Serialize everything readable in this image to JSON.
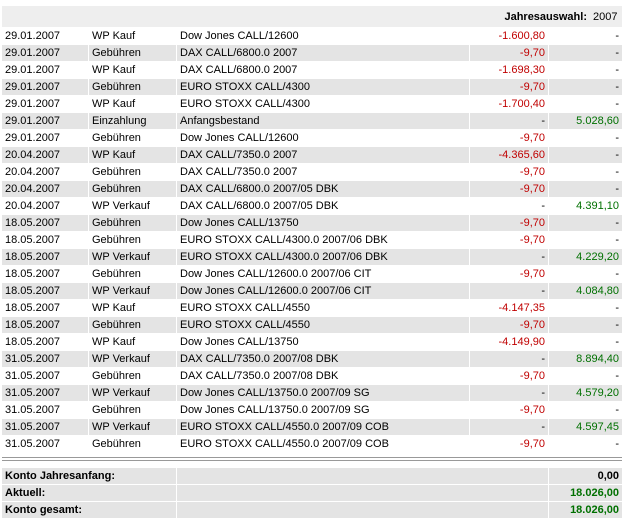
{
  "header": {
    "label": "Jahresauswahl:",
    "year": "2007"
  },
  "table": {
    "rows": [
      [
        "29.01.2007",
        "WP Kauf",
        "Dow Jones CALL/12600",
        "-1.600,80",
        "-"
      ],
      [
        "29.01.2007",
        "Gebühren",
        "DAX CALL/6800.0 2007",
        "-9,70",
        "-"
      ],
      [
        "29.01.2007",
        "WP Kauf",
        "DAX CALL/6800.0 2007",
        "-1.698,30",
        "-"
      ],
      [
        "29.01.2007",
        "Gebühren",
        "EURO STOXX CALL/4300",
        "-9,70",
        "-"
      ],
      [
        "29.01.2007",
        "WP Kauf",
        "EURO STOXX CALL/4300",
        "-1.700,40",
        "-"
      ],
      [
        "29.01.2007",
        "Einzahlung",
        "Anfangsbestand",
        "-",
        "5.028,60"
      ],
      [
        "29.01.2007",
        "Gebühren",
        "Dow Jones CALL/12600",
        "-9,70",
        "-"
      ],
      [
        "20.04.2007",
        "WP Kauf",
        "DAX CALL/7350.0 2007",
        "-4.365,60",
        "-"
      ],
      [
        "20.04.2007",
        "Gebühren",
        "DAX CALL/7350.0 2007",
        "-9,70",
        "-"
      ],
      [
        "20.04.2007",
        "Gebühren",
        "DAX CALL/6800.0 2007/05 DBK",
        "-9,70",
        "-"
      ],
      [
        "20.04.2007",
        "WP Verkauf",
        "DAX CALL/6800.0 2007/05 DBK",
        "-",
        "4.391,10"
      ],
      [
        "18.05.2007",
        "Gebühren",
        "Dow Jones CALL/13750",
        "-9,70",
        "-"
      ],
      [
        "18.05.2007",
        "Gebühren",
        "EURO STOXX CALL/4300.0 2007/06 DBK",
        "-9,70",
        "-"
      ],
      [
        "18.05.2007",
        "WP Verkauf",
        "EURO STOXX CALL/4300.0 2007/06 DBK",
        "-",
        "4.229,20"
      ],
      [
        "18.05.2007",
        "Gebühren",
        "Dow Jones CALL/12600.0 2007/06 CIT",
        "-9,70",
        "-"
      ],
      [
        "18.05.2007",
        "WP Verkauf",
        "Dow Jones CALL/12600.0 2007/06 CIT",
        "-",
        "4.084,80"
      ],
      [
        "18.05.2007",
        "WP Kauf",
        "EURO STOXX CALL/4550",
        "-4.147,35",
        "-"
      ],
      [
        "18.05.2007",
        "Gebühren",
        "EURO STOXX CALL/4550",
        "-9,70",
        "-"
      ],
      [
        "18.05.2007",
        "WP Kauf",
        "Dow Jones CALL/13750",
        "-4.149,90",
        "-"
      ],
      [
        "31.05.2007",
        "WP Verkauf",
        "DAX CALL/7350.0 2007/08 DBK",
        "-",
        "8.894,40"
      ],
      [
        "31.05.2007",
        "Gebühren",
        "DAX CALL/7350.0 2007/08 DBK",
        "-9,70",
        "-"
      ],
      [
        "31.05.2007",
        "WP Verkauf",
        "Dow Jones CALL/13750.0 2007/09 SG",
        "-",
        "4.579,20"
      ],
      [
        "31.05.2007",
        "Gebühren",
        "Dow Jones CALL/13750.0 2007/09 SG",
        "-9,70",
        "-"
      ],
      [
        "31.05.2007",
        "WP Verkauf",
        "EURO STOXX CALL/4550.0 2007/09 COB",
        "-",
        "4.597,45"
      ],
      [
        "31.05.2007",
        "Gebühren",
        "EURO STOXX CALL/4550.0 2007/09 COB",
        "-9,70",
        "-"
      ]
    ]
  },
  "summary": {
    "rows": [
      [
        "Konto Jahresanfang:",
        "0,00"
      ],
      [
        "Aktuell:",
        "18.026,00"
      ],
      [
        "Konto gesamt:",
        "18.026,00"
      ]
    ]
  }
}
